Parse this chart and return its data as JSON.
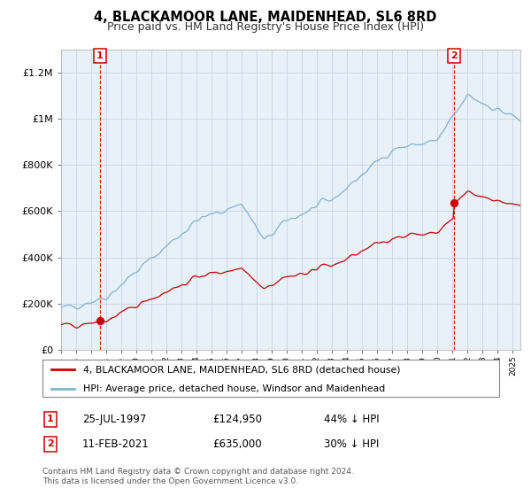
{
  "title": "4, BLACKAMOOR LANE, MAIDENHEAD, SL6 8RD",
  "subtitle": "Price paid vs. HM Land Registry's House Price Index (HPI)",
  "title_fontsize": 10.5,
  "subtitle_fontsize": 9,
  "background_color": "#ffffff",
  "plot_bg_color": "#e8f0f8",
  "grid_color": "#c8d4e4",
  "red_color": "#cc0000",
  "blue_color": "#7fb3d3",
  "sale1_date_num": 1997.57,
  "sale1_price": 124950,
  "sale1_label": "1",
  "sale2_date_num": 2021.12,
  "sale2_price": 635000,
  "sale2_label": "2",
  "xmin": 1995.0,
  "xmax": 2025.5,
  "ymin": 0,
  "ymax": 1300000,
  "yticks": [
    0,
    200000,
    400000,
    600000,
    800000,
    1000000,
    1200000
  ],
  "ytick_labels": [
    "£0",
    "£200K",
    "£400K",
    "£600K",
    "£800K",
    "£1M",
    "£1.2M"
  ],
  "legend_line1": "4, BLACKAMOOR LANE, MAIDENHEAD, SL6 8RD (detached house)",
  "legend_line2": "HPI: Average price, detached house, Windsor and Maidenhead",
  "footnote_line1": "Contains HM Land Registry data © Crown copyright and database right 2024.",
  "footnote_line2": "This data is licensed under the Open Government Licence v3.0.",
  "table_row1_num": "1",
  "table_row1_date": "25-JUL-1997",
  "table_row1_price": "£124,950",
  "table_row1_hpi": "44% ↓ HPI",
  "table_row2_num": "2",
  "table_row2_date": "11-FEB-2021",
  "table_row2_price": "£635,000",
  "table_row2_hpi": "30% ↓ HPI"
}
